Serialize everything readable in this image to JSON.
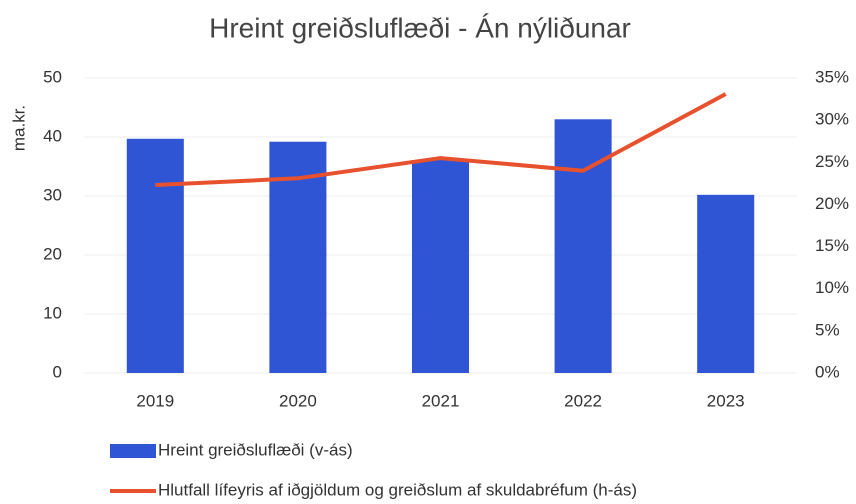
{
  "chart_data": {
    "type": "bar_line",
    "title": "Hreint greiðsluflæði - Án nýliðunar",
    "y_label": "ma.kr.",
    "categories": [
      "2019",
      "2020",
      "2021",
      "2022",
      "2023"
    ],
    "series": [
      {
        "name": "Hreint greiðsluflæði (v-ás)",
        "type": "bar",
        "color": "#2f55d4",
        "values": [
          39.7,
          39.2,
          36.1,
          43.0,
          30.2
        ]
      },
      {
        "name": "Hlutfall lífeyris af iðgjöldum og greiðslum af skuldabréfum (h-ás)",
        "type": "line",
        "axis": "y2",
        "color": "#e8512e",
        "values": [
          22.3,
          23.1,
          25.5,
          24.0,
          33.1
        ]
      }
    ],
    "ylim": [
      0,
      50
    ],
    "yticks": [
      0,
      10,
      20,
      30,
      40,
      50
    ],
    "y2lim": [
      0,
      35
    ],
    "y2ticks": [
      {
        "value": 0,
        "label": "0%"
      },
      {
        "value": 5,
        "label": "5%"
      },
      {
        "value": 10,
        "label": "10%"
      },
      {
        "value": 15,
        "label": "15%"
      },
      {
        "value": 20,
        "label": "20%"
      },
      {
        "value": 25,
        "label": "25%"
      },
      {
        "value": 30,
        "label": "30%"
      },
      {
        "value": 35,
        "label": "35%"
      }
    ],
    "grid": true
  }
}
